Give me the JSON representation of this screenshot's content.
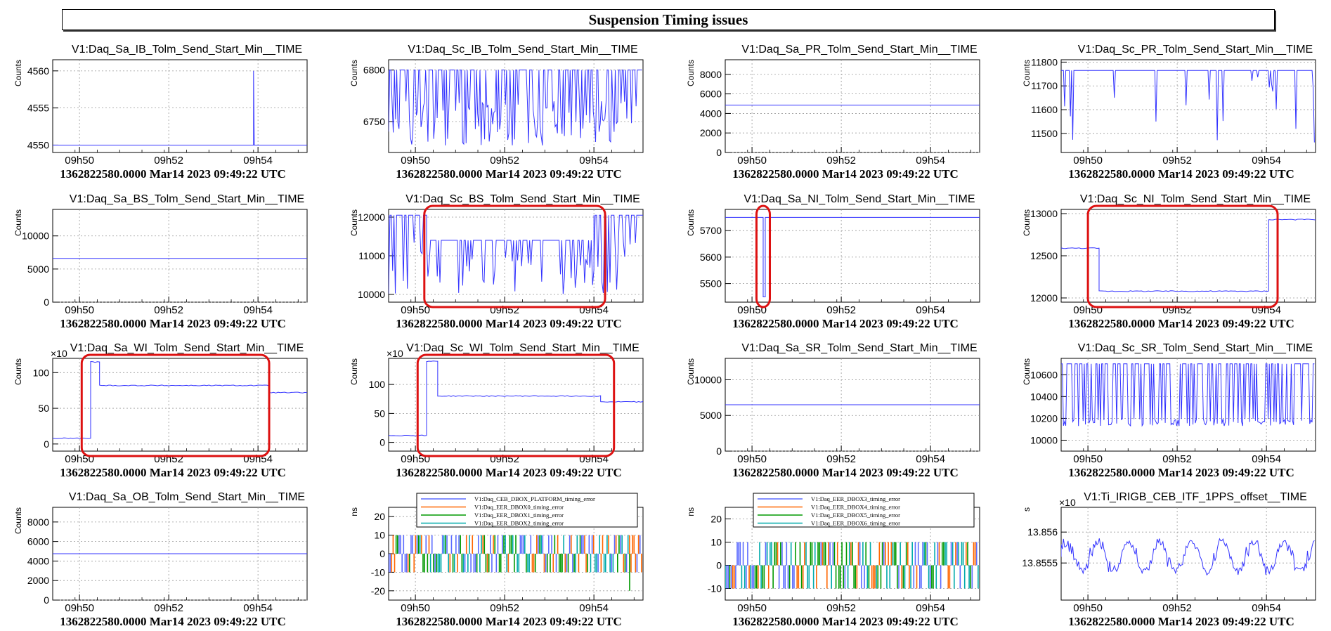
{
  "page": {
    "title": "Suspension Timing issues"
  },
  "common": {
    "footer": "1362822580.0000 Mar14 2023 09:49:22 UTC",
    "x_ticks": [
      "09h50",
      "09h52",
      "09h54"
    ],
    "series_color": "#3333ff"
  },
  "chart_data": [
    {
      "type": "line",
      "title": "V1:Daq_Sa_IB_Tolm_Send_Start_Min__TIME",
      "ylabel": "Counts",
      "ylim": [
        4549,
        4561.5
      ],
      "yticks": [
        4550,
        4555,
        4560
      ],
      "pattern": "spike",
      "base": 4550,
      "spike_t": 4.5,
      "spike_v": 4560
    },
    {
      "type": "line",
      "title": "V1:Daq_Sc_IB_Tolm_Send_Start_Min__TIME",
      "ylabel": "Counts",
      "ylim": [
        6720,
        6810
      ],
      "yticks": [
        6750,
        6800
      ],
      "pattern": "dense",
      "high": 6800,
      "low": 6770,
      "minv": 6725
    },
    {
      "type": "line",
      "title": "V1:Daq_Sa_PR_Tolm_Send_Start_Min__TIME",
      "ylabel": "Counts",
      "ylim": [
        0,
        9500
      ],
      "yticks": [
        0,
        2000,
        4000,
        6000,
        8000
      ],
      "pattern": "flat",
      "base": 4850
    },
    {
      "type": "line",
      "title": "V1:Daq_Sc_PR_Tolm_Send_Start_Min__TIME",
      "ylabel": "Counts",
      "ylim": [
        11420,
        11810
      ],
      "yticks": [
        11500,
        11600,
        11700,
        11800
      ],
      "pattern": "drops",
      "base": 11765,
      "minv": 11450
    },
    {
      "type": "line",
      "title": "V1:Daq_Sa_BS_Tolm_Send_Start_Min__TIME",
      "ylabel": "Counts",
      "ylim": [
        0,
        14000
      ],
      "yticks": [
        0,
        5000,
        10000
      ],
      "pattern": "flat",
      "base": 6600
    },
    {
      "type": "line",
      "title": "V1:Daq_Sc_BS_Tolm_Send_Start_Min__TIME",
      "ylabel": "Counts",
      "ylim": [
        9800,
        12200
      ],
      "yticks": [
        10000,
        11000,
        12000
      ],
      "pattern": "step_drops",
      "segments": [
        {
          "t0": 0,
          "t1": 0.85,
          "v": 12050
        },
        {
          "t0": 0.85,
          "t1": 4.6,
          "v": 11400
        },
        {
          "t0": 4.6,
          "t1": 5.7,
          "v": 12050
        }
      ],
      "minv": 10000,
      "highlight": [
        0.8,
        4.85
      ]
    },
    {
      "type": "line",
      "title": "V1:Daq_Sa_NI_Tolm_Send_Start_Min__TIME",
      "ylabel": "Counts",
      "ylim": [
        5430,
        5780
      ],
      "yticks": [
        5500,
        5600,
        5700
      ],
      "pattern": "dip",
      "base": 5750,
      "dip_t": 0.85,
      "dip_v": 5450,
      "highlight": [
        0.7,
        1.0
      ]
    },
    {
      "type": "line",
      "title": "V1:Daq_Sc_NI_Tolm_Send_Start_Min__TIME",
      "ylabel": "Counts",
      "ylim": [
        11950,
        13050
      ],
      "yticks": [
        12000,
        12500,
        13000
      ],
      "pattern": "steps",
      "segments": [
        {
          "t0": 0,
          "t1": 0.85,
          "v": 12590
        },
        {
          "t0": 0.85,
          "t1": 4.65,
          "v": 12080
        },
        {
          "t0": 4.65,
          "t1": 5.7,
          "v": 12930
        }
      ],
      "highlight": [
        0.6,
        4.85
      ]
    },
    {
      "type": "line",
      "title": "V1:Daq_Sa_WI_Tolm_Send_Start_Min__TIME",
      "ylabel": "Counts",
      "multiplier": "×10",
      "ylim": [
        -10,
        120
      ],
      "yticks": [
        0,
        50,
        100
      ],
      "pattern": "steps",
      "segments": [
        {
          "t0": 0,
          "t1": 0.85,
          "v": 8
        },
        {
          "t0": 0.85,
          "t1": 1.05,
          "v": 115
        },
        {
          "t0": 1.05,
          "t1": 4.85,
          "v": 82
        },
        {
          "t0": 4.85,
          "t1": 5.7,
          "v": 72
        }
      ],
      "highlight": [
        0.65,
        4.85
      ]
    },
    {
      "type": "line",
      "title": "V1:Daq_Sc_WI_Tolm_Send_Start_Min__TIME",
      "ylabel": "Counts",
      "multiplier": "×10",
      "ylim": [
        -15,
        145
      ],
      "yticks": [
        0,
        50,
        100
      ],
      "pattern": "steps",
      "segments": [
        {
          "t0": 0,
          "t1": 0.85,
          "v": 12
        },
        {
          "t0": 0.85,
          "t1": 1.1,
          "v": 140
        },
        {
          "t0": 1.1,
          "t1": 4.75,
          "v": 80
        },
        {
          "t0": 4.75,
          "t1": 5.7,
          "v": 70
        }
      ],
      "highlight": [
        0.65,
        5.05
      ]
    },
    {
      "type": "line",
      "title": "V1:Daq_Sa_SR_Tolm_Send_Start_Min__TIME",
      "ylabel": "Counts",
      "ylim": [
        0,
        13000
      ],
      "yticks": [
        0,
        5000,
        10000
      ],
      "pattern": "flat",
      "base": 6500
    },
    {
      "type": "line",
      "title": "V1:Daq_Sc_SR_Tolm_Send_Start_Min__TIME",
      "ylabel": "Counts",
      "ylim": [
        9900,
        10750
      ],
      "yticks": [
        10000,
        10200,
        10400,
        10600
      ],
      "pattern": "dense",
      "high": 10700,
      "low": 10200,
      "minv": 10130
    },
    {
      "type": "line",
      "title": "V1:Daq_Sa_OB_Tolm_Send_Start_Min__TIME",
      "ylabel": "Counts",
      "ylim": [
        0,
        9500
      ],
      "yticks": [
        0,
        2000,
        4000,
        6000,
        8000
      ],
      "pattern": "flat",
      "base": 4750
    },
    {
      "type": "line",
      "title": "",
      "ylabel": "ns",
      "ylim": [
        -25,
        25
      ],
      "yticks": [
        -20,
        -10,
        0,
        10,
        20
      ],
      "pattern": "timing",
      "legend": {
        "position": "top",
        "entries": [
          {
            "name": "V1:Daq_CEB_DBOX_PLATFORM_timing_error",
            "color": "#5b6bff"
          },
          {
            "name": "V1:Daq_EER_DBOX0_timing_error",
            "color": "#ff6600"
          },
          {
            "name": "V1:Daq_EER_DBOX1_timing_error",
            "color": "#009900"
          },
          {
            "name": "V1:Daq_EER_DBOX2_timing_error",
            "color": "#00aaaa"
          }
        ]
      },
      "spike_v": -20
    },
    {
      "type": "line",
      "title": "",
      "ylabel": "ns",
      "ylim": [
        -15,
        25
      ],
      "yticks": [
        -10,
        0,
        10,
        20
      ],
      "pattern": "timing",
      "legend": {
        "position": "top",
        "entries": [
          {
            "name": "V1:Daq_EER_DBOX3_timing_error",
            "color": "#5b6bff"
          },
          {
            "name": "V1:Daq_EER_DBOX4_timing_error",
            "color": "#ff6600"
          },
          {
            "name": "V1:Daq_EER_DBOX5_timing_error",
            "color": "#009900"
          },
          {
            "name": "V1:Daq_EER_DBOX6_timing_error",
            "color": "#00aaaa"
          }
        ]
      }
    },
    {
      "type": "line",
      "title": "V1:Ti_IRIGB_CEB_ITF_1PPS_offset__TIME",
      "ylabel": "s",
      "multiplier": "×10",
      "ylim": [
        13.8549,
        13.8564
      ],
      "yticks": [
        13.8555,
        13.856
      ],
      "ytick_labels": [
        "13.8555",
        "13.856"
      ],
      "pattern": "noise",
      "base": 13.8556,
      "amp": 0.0003
    }
  ]
}
